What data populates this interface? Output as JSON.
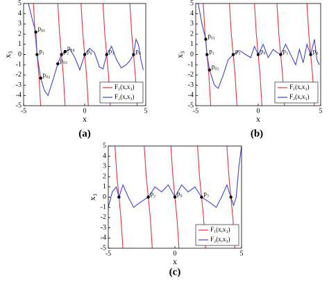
{
  "chart_data": [
    {
      "type": "line",
      "caption": "(a)",
      "xlabel": "x",
      "ylabel": "x₃",
      "xlim": [
        -5,
        5
      ],
      "ylim": [
        -5,
        5
      ],
      "xticks": [
        -5,
        0,
        5
      ],
      "yticks": [
        -5,
        -4,
        -3,
        -2,
        -1,
        0,
        1,
        2,
        3,
        4,
        5
      ],
      "legend": "lower right",
      "series": [
        {
          "name": "F₁(x,x₃)",
          "color": "#e8303a",
          "x": [
            -4.2,
            -4.05,
            -3.9,
            -3.75,
            -3.6,
            null,
            -2.2,
            -2.05,
            -1.9,
            -1.75,
            -1.6,
            null,
            -0.3,
            -0.15,
            0,
            0.15,
            0.3,
            null,
            1.5,
            1.65,
            1.8,
            1.95,
            2.1,
            null,
            3.7,
            3.85,
            4.0,
            4.15,
            4.3
          ],
          "values": [
            5,
            2,
            0,
            -2,
            -5,
            null,
            5,
            2,
            0,
            -2,
            -5,
            null,
            5,
            2,
            0,
            -2,
            -5,
            null,
            5,
            2,
            0,
            -2,
            -5,
            null,
            5,
            2,
            0,
            -2,
            -5
          ]
        },
        {
          "name": "F₂(x,x₃)",
          "color": "#3a44d8",
          "x": [
            -4.6,
            -4.3,
            -4.0,
            -3.9,
            -3.6,
            -3.3,
            -3.0,
            -2.6,
            -2.2,
            -1.9,
            -1.6,
            -1.2,
            -0.8,
            -0.4,
            0,
            0.4,
            0.8,
            1.2,
            1.5,
            1.8,
            2.2,
            2.6,
            3.0,
            3.4,
            3.7,
            4.0,
            4.2,
            4.4,
            4.6,
            4.8
          ],
          "values": [
            5,
            3.5,
            2.2,
            0,
            -2.3,
            -3.5,
            -4,
            -2.5,
            -0.9,
            0,
            0.3,
            0.5,
            -0.3,
            -1.5,
            0,
            0.6,
            0.2,
            -1.2,
            -1.4,
            0,
            0.8,
            -0.5,
            -1.3,
            -1,
            -0.6,
            0,
            1.5,
            1,
            -0.5,
            -1.5
          ]
        }
      ],
      "points": [
        {
          "x": -4.0,
          "y": 2.2,
          "label": "p₀₁"
        },
        {
          "x": -3.9,
          "y": 0,
          "label": "p₁"
        },
        {
          "x": -3.6,
          "y": -2.3,
          "label": "p₀₂"
        },
        {
          "x": -1.9,
          "y": 0,
          "label": "p₂"
        },
        {
          "x": -2.2,
          "y": -0.9,
          "label": "p₀₃"
        },
        {
          "x": -1.6,
          "y": 0.3,
          "label": "p₀₄"
        },
        {
          "x": 0,
          "y": 0,
          "label": "p₀"
        },
        {
          "x": 1.8,
          "y": 0,
          "label": "p₃"
        },
        {
          "x": 4.0,
          "y": 0,
          "label": "p₄"
        }
      ]
    },
    {
      "type": "line",
      "caption": "(b)",
      "xlabel": "x",
      "ylabel": "x₃",
      "xlim": [
        -5,
        5
      ],
      "ylim": [
        -5,
        5
      ],
      "xticks": [
        -5,
        0,
        5
      ],
      "yticks": [
        -5,
        -4,
        -3,
        -2,
        -1,
        0,
        1,
        2,
        3,
        4,
        5
      ],
      "legend": "lower right",
      "series": [
        {
          "name": "F₁(x,x₃)",
          "color": "#e8303a",
          "x": [
            -4.4,
            -4.25,
            -4.1,
            -3.95,
            -3.8,
            null,
            -2.3,
            -2.15,
            -2.0,
            -1.85,
            -1.7,
            null,
            -0.3,
            -0.15,
            0,
            0.15,
            0.3,
            null,
            1.5,
            1.65,
            1.8,
            1.95,
            2.1,
            null,
            3.9,
            4.05,
            4.2,
            4.35,
            4.5
          ],
          "values": [
            5,
            2,
            0,
            -2,
            -5,
            null,
            5,
            2,
            0,
            -2,
            -5,
            null,
            5,
            2,
            0,
            -2,
            -5,
            null,
            5,
            2,
            0,
            -2,
            -5,
            null,
            5,
            2,
            0,
            -2,
            -5
          ]
        },
        {
          "name": "F₂(x,x₃)",
          "color": "#3a44d8",
          "x": [
            -4.8,
            -4.5,
            -4.2,
            -4.1,
            -3.9,
            -3.5,
            -3.2,
            -2.8,
            -2.4,
            -2.0,
            -1.5,
            -1.0,
            -0.6,
            -0.3,
            0,
            0.4,
            0.8,
            1.2,
            1.5,
            1.8,
            2.2,
            2.6,
            3.0,
            3.3,
            3.6,
            3.9,
            4.2,
            4.5,
            4.7,
            4.9
          ],
          "values": [
            5,
            3,
            1.5,
            0,
            -1.5,
            -3,
            -3.3,
            -2,
            -0.5,
            0,
            0.4,
            0,
            -0.3,
            0.8,
            0,
            1,
            -0.3,
            0.5,
            0.2,
            0,
            1.0,
            0,
            -1,
            0.5,
            -0.8,
            1,
            0,
            1.5,
            -0.5,
            -1
          ]
        }
      ],
      "points": [
        {
          "x": -4.2,
          "y": 1.5,
          "label": "p₀₁"
        },
        {
          "x": -4.1,
          "y": 0,
          "label": "p₁"
        },
        {
          "x": -3.9,
          "y": -1.5,
          "label": "p₀₂"
        },
        {
          "x": -2.0,
          "y": 0,
          "label": "p₂"
        },
        {
          "x": 0,
          "y": 0,
          "label": "p₀"
        },
        {
          "x": 1.8,
          "y": 0,
          "label": "p₃"
        },
        {
          "x": 4.2,
          "y": 0,
          "label": "p₄"
        }
      ]
    },
    {
      "type": "line",
      "caption": "(c)",
      "xlabel": "x",
      "ylabel": "x₃",
      "xlim": [
        -5,
        5
      ],
      "ylim": [
        -5,
        5
      ],
      "xticks": [
        -5,
        0,
        5
      ],
      "yticks": [
        -5,
        -4,
        -3,
        -2,
        -1,
        0,
        1,
        2,
        3,
        4,
        5
      ],
      "legend": "lower right",
      "series": [
        {
          "name": "F₁(x,x₃)",
          "color": "#e8303a",
          "x": [
            -4.5,
            -4.35,
            -4.2,
            -4.05,
            -3.9,
            null,
            -2.3,
            -2.15,
            -2.0,
            -1.85,
            -1.7,
            null,
            -0.3,
            -0.15,
            0,
            0.15,
            0.3,
            null,
            1.7,
            1.85,
            2.0,
            2.15,
            2.3,
            null,
            3.9,
            4.05,
            4.2,
            4.35,
            4.5
          ],
          "values": [
            5,
            2,
            0,
            -2,
            -5,
            null,
            5,
            2,
            0,
            -2,
            -5,
            null,
            5,
            2,
            0,
            -2,
            -5,
            null,
            5,
            2,
            0,
            -2,
            -5,
            null,
            5,
            2,
            0,
            -2,
            -5
          ]
        },
        {
          "name": "F₂(x,x₃)",
          "color": "#3a44d8",
          "x": [
            -5,
            -4.7,
            -4.4,
            -4.2,
            -3.9,
            -3.5,
            -3.1,
            -2.6,
            -2.0,
            -1.5,
            -1.0,
            -0.5,
            0,
            0.5,
            1.0,
            1.5,
            2.0,
            2.6,
            3.1,
            3.5,
            3.9,
            4.2,
            4.4,
            4.6,
            4.8,
            5
          ],
          "values": [
            -1,
            0.5,
            1,
            0,
            1.2,
            0,
            -1,
            -0.5,
            0,
            1.0,
            0.5,
            1.2,
            0,
            1.2,
            0.5,
            1.0,
            0,
            -0.5,
            -1,
            0,
            1.2,
            0,
            -0.8,
            0,
            3,
            5
          ]
        }
      ],
      "points": [
        {
          "x": -4.2,
          "y": 0,
          "label": null
        },
        {
          "x": -2.0,
          "y": 0,
          "label": "p₂"
        },
        {
          "x": 0,
          "y": 0,
          "label": "p₀"
        },
        {
          "x": 2.0,
          "y": 0,
          "label": "p₃"
        },
        {
          "x": 4.2,
          "y": 0,
          "label": null
        }
      ]
    }
  ]
}
